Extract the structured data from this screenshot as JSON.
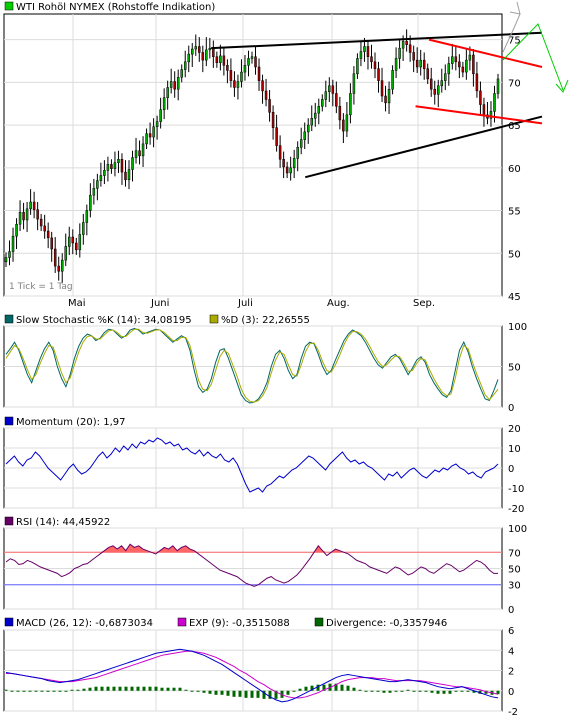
{
  "colors": {
    "frame": "#000000",
    "grid": "#dcdcdc",
    "candle_up": "#00aa00",
    "candle_down": "#aa0000",
    "trend_black": "#000000",
    "trend_red": "#ff0000",
    "arrow_up": "#a0a0a0",
    "arrow_down": "#00cc00",
    "stoch_k": "#006666",
    "stoch_d": "#aaaa00",
    "momentum": "#0000cc",
    "rsi": "#660066",
    "rsi_fill": "#ff6666",
    "rsi_upper": "#ff6666",
    "rsi_lower": "#6666ff",
    "macd": "#0000cc",
    "exp": "#cc00cc",
    "divergence": "#006600"
  },
  "chart_data": [
    {
      "type": "candlestick",
      "title": "WTI Rohöl NYMEX (Rohstoffe Indikation)",
      "legend_color": "#00cc00",
      "note": "1 Tick = 1 Tag",
      "x_labels": [
        "Mai",
        "Juni",
        "Juli",
        "Aug.",
        "Sep."
      ],
      "y_ticks": [
        45,
        50,
        55,
        60,
        65,
        70,
        75
      ],
      "ylim": [
        45,
        78
      ],
      "trend_lines": [
        {
          "color": "black",
          "points": [
            [
              0.385,
              74.0
            ],
            [
              1.0,
              75.8
            ]
          ]
        },
        {
          "color": "black",
          "points": [
            [
              0.56,
              58.9
            ],
            [
              1.0,
              66.0
            ]
          ]
        },
        {
          "color": "red",
          "points": [
            [
              0.79,
              75.0
            ],
            [
              1.0,
              71.8
            ]
          ]
        },
        {
          "color": "red",
          "points": [
            [
              0.765,
              67.2
            ],
            [
              1.0,
              65.2
            ]
          ]
        }
      ],
      "forecast_arrows": [
        {
          "direction": "up",
          "color": "grey"
        },
        {
          "direction": "up-down",
          "color": "green"
        }
      ],
      "close": [
        49.5,
        50.2,
        52.0,
        53.4,
        54.8,
        53.9,
        55.2,
        56.0,
        55.1,
        54.0,
        53.2,
        52.6,
        51.8,
        50.5,
        48.5,
        47.9,
        49.2,
        50.8,
        51.9,
        51.2,
        50.4,
        52.2,
        53.6,
        55.0,
        56.8,
        57.6,
        58.5,
        59.1,
        59.7,
        60.4,
        59.9,
        60.6,
        61.0,
        59.5,
        58.6,
        59.8,
        61.2,
        62.0,
        61.4,
        62.8,
        64.0,
        63.6,
        64.8,
        65.4,
        66.8,
        68.2,
        69.4,
        70.1,
        69.2,
        70.6,
        71.5,
        72.4,
        73.3,
        73.9,
        74.2,
        73.5,
        72.6,
        73.8,
        74.0,
        73.0,
        72.3,
        73.1,
        72.0,
        71.4,
        70.2,
        69.4,
        70.1,
        71.2,
        72.0,
        72.8,
        73.0,
        71.8,
        70.2,
        69.0,
        68.0,
        66.5,
        64.7,
        62.6,
        61.0,
        60.1,
        59.4,
        60.0,
        61.1,
        62.4,
        63.3,
        64.2,
        65.0,
        65.8,
        66.4,
        67.2,
        68.0,
        68.9,
        69.6,
        68.7,
        67.2,
        65.6,
        64.3,
        66.2,
        68.7,
        71.0,
        72.8,
        73.6,
        74.2,
        73.0,
        72.4,
        71.6,
        70.2,
        68.4,
        67.6,
        69.2,
        71.4,
        72.8,
        74.0,
        74.8,
        74.4,
        73.5,
        72.6,
        71.8,
        72.6,
        71.6,
        70.4,
        69.2,
        68.6,
        69.6,
        70.2,
        71.0,
        72.2,
        73.0,
        72.4,
        71.8,
        71.2,
        72.6,
        73.2,
        71.0,
        69.0,
        67.4,
        66.2,
        65.8,
        66.6,
        68.7,
        70.4
      ]
    },
    {
      "type": "line",
      "title": "Slow Stochastic %K (14): 34,08195",
      "legend_color": "#006666",
      "y_ticks": [
        0,
        50,
        100
      ],
      "ylim": [
        0,
        100
      ],
      "series": [
        {
          "name": "Slow Stochastic %K (14): 34,08195",
          "values": [
            65,
            72,
            80,
            70,
            55,
            40,
            30,
            45,
            60,
            72,
            80,
            70,
            50,
            35,
            25,
            40,
            60,
            75,
            85,
            90,
            88,
            82,
            85,
            92,
            96,
            95,
            90,
            85,
            88,
            95,
            97,
            95,
            90,
            92,
            94,
            96,
            95,
            90,
            85,
            80,
            84,
            88,
            85,
            70,
            45,
            25,
            18,
            22,
            35,
            55,
            70,
            72,
            60,
            45,
            30,
            15,
            8,
            5,
            6,
            10,
            18,
            30,
            50,
            65,
            70,
            60,
            45,
            35,
            40,
            60,
            75,
            80,
            78,
            65,
            50,
            40,
            45,
            58,
            70,
            82,
            90,
            95,
            92,
            88,
            80,
            70,
            60,
            52,
            48,
            55,
            62,
            65,
            60,
            50,
            40,
            48,
            58,
            62,
            55,
            40,
            30,
            22,
            15,
            12,
            20,
            45,
            70,
            80,
            68,
            50,
            35,
            22,
            10,
            8,
            20,
            34
          ]
        },
        {
          "name": "%D (3): 22,26555",
          "values": [
            60,
            68,
            76,
            72,
            60,
            46,
            34,
            40,
            54,
            66,
            76,
            74,
            58,
            42,
            30,
            36,
            52,
            68,
            80,
            87,
            88,
            84,
            84,
            89,
            94,
            95,
            92,
            87,
            87,
            92,
            96,
            96,
            92,
            91,
            93,
            95,
            95,
            92,
            87,
            82,
            82,
            86,
            86,
            76,
            55,
            33,
            22,
            20,
            28,
            45,
            62,
            70,
            66,
            52,
            38,
            22,
            12,
            7,
            6,
            8,
            14,
            24,
            42,
            58,
            68,
            65,
            52,
            40,
            38,
            52,
            68,
            78,
            79,
            70,
            56,
            45,
            43,
            52,
            64,
            77,
            87,
            93,
            93,
            90,
            84,
            75,
            65,
            56,
            50,
            52,
            58,
            63,
            62,
            54,
            44,
            45,
            54,
            60,
            58,
            46,
            35,
            26,
            18,
            14,
            16,
            35,
            60,
            76,
            72,
            56,
            41,
            28,
            15,
            9,
            15,
            22
          ]
        }
      ]
    },
    {
      "type": "line",
      "title": "Momentum (20): 1,97",
      "legend_color": "#0000cc",
      "y_ticks": [
        -20,
        -10,
        0,
        10,
        20
      ],
      "ylim": [
        -20,
        20
      ],
      "series": [
        {
          "name": "Momentum (20): 1,97",
          "values": [
            2,
            4,
            6,
            3,
            1,
            4,
            5,
            8,
            6,
            3,
            0,
            -2,
            -4,
            -6,
            -3,
            0,
            2,
            -1,
            -3,
            -2,
            0,
            3,
            6,
            8,
            5,
            7,
            10,
            8,
            11,
            9,
            12,
            10,
            13,
            12,
            14,
            13,
            15,
            14,
            12,
            13,
            11,
            12,
            9,
            10,
            8,
            7,
            9,
            6,
            8,
            6,
            5,
            7,
            4,
            3,
            5,
            2,
            -3,
            -8,
            -12,
            -11,
            -10,
            -12,
            -9,
            -8,
            -6,
            -4,
            -5,
            -3,
            -1,
            0,
            2,
            4,
            6,
            5,
            3,
            1,
            -1,
            2,
            4,
            6,
            8,
            5,
            3,
            4,
            2,
            3,
            1,
            0,
            -2,
            -4,
            -6,
            -3,
            -4,
            -2,
            -5,
            -3,
            -1,
            0,
            -2,
            -4,
            -5,
            -3,
            -1,
            -2,
            0,
            -1,
            1,
            2,
            0,
            -1,
            -3,
            -2,
            -4,
            -5,
            -2,
            -1,
            0,
            2
          ]
        }
      ]
    },
    {
      "type": "line",
      "title": "RSI (14): 44,45922",
      "legend_color": "#660066",
      "y_ticks": [
        0,
        30,
        50,
        70,
        100
      ],
      "ylim": [
        0,
        100
      ],
      "reference_lines": [
        70,
        30
      ],
      "series": [
        {
          "name": "RSI (14): 44,45922",
          "values": [
            58,
            62,
            60,
            55,
            56,
            60,
            58,
            55,
            52,
            50,
            48,
            46,
            44,
            40,
            42,
            45,
            50,
            52,
            55,
            56,
            60,
            64,
            68,
            72,
            76,
            78,
            74,
            78,
            72,
            80,
            76,
            78,
            74,
            72,
            70,
            68,
            72,
            76,
            74,
            78,
            72,
            76,
            78,
            74,
            72,
            68,
            64,
            60,
            56,
            52,
            48,
            46,
            44,
            42,
            40,
            36,
            32,
            30,
            28,
            30,
            34,
            38,
            40,
            36,
            34,
            32,
            34,
            38,
            42,
            48,
            55,
            62,
            70,
            78,
            72,
            66,
            70,
            74,
            72,
            70,
            68,
            64,
            60,
            58,
            56,
            52,
            50,
            48,
            46,
            44,
            48,
            52,
            50,
            46,
            42,
            44,
            48,
            52,
            50,
            46,
            44,
            48,
            52,
            56,
            54,
            50,
            46,
            48,
            52,
            56,
            60,
            58,
            54,
            48,
            44,
            44
          ]
        }
      ]
    },
    {
      "type": "line",
      "title": "MACD (26, 12): -0,6873034",
      "legend_color": "#0000cc",
      "y_ticks": [
        -2,
        0,
        2,
        4,
        6
      ],
      "ylim": [
        -2,
        6
      ],
      "series": [
        {
          "name": "MACD (26, 12): -0,6873034",
          "values": [
            1.8,
            1.7,
            1.6,
            1.5,
            1.4,
            1.3,
            1.2,
            1.0,
            0.9,
            0.8,
            0.9,
            1.0,
            1.1,
            1.3,
            1.5,
            1.7,
            1.9,
            2.1,
            2.3,
            2.5,
            2.7,
            2.9,
            3.1,
            3.3,
            3.5,
            3.7,
            3.8,
            3.9,
            4.0,
            4.1,
            4.0,
            3.9,
            3.7,
            3.5,
            3.2,
            2.9,
            2.6,
            2.2,
            1.8,
            1.4,
            1.0,
            0.6,
            0.2,
            -0.2,
            -0.6,
            -0.9,
            -1.1,
            -1.0,
            -0.8,
            -0.5,
            -0.2,
            0.1,
            0.4,
            0.7,
            1.0,
            1.3,
            1.5,
            1.6,
            1.5,
            1.4,
            1.3,
            1.2,
            1.1,
            1.0,
            0.9,
            0.9,
            1.0,
            1.1,
            1.0,
            0.9,
            0.8,
            0.6,
            0.4,
            0.3,
            0.2,
            0.3,
            0.4,
            0.2,
            0.0,
            -0.2,
            -0.4,
            -0.6,
            -0.7
          ]
        },
        {
          "name": "EXP (9): -0,3515088",
          "values": [
            1.7,
            1.7,
            1.6,
            1.5,
            1.4,
            1.3,
            1.2,
            1.1,
            1.0,
            0.9,
            0.9,
            0.9,
            1.0,
            1.1,
            1.2,
            1.3,
            1.5,
            1.7,
            1.9,
            2.1,
            2.3,
            2.5,
            2.7,
            2.9,
            3.1,
            3.3,
            3.5,
            3.6,
            3.7,
            3.8,
            3.9,
            3.9,
            3.8,
            3.7,
            3.5,
            3.3,
            3.0,
            2.7,
            2.4,
            2.0,
            1.7,
            1.3,
            0.9,
            0.6,
            0.2,
            -0.1,
            -0.4,
            -0.6,
            -0.7,
            -0.7,
            -0.6,
            -0.4,
            -0.2,
            0.1,
            0.3,
            0.6,
            0.9,
            1.1,
            1.2,
            1.3,
            1.3,
            1.3,
            1.2,
            1.2,
            1.1,
            1.0,
            1.0,
            1.0,
            1.0,
            1.0,
            0.9,
            0.8,
            0.7,
            0.6,
            0.5,
            0.4,
            0.4,
            0.3,
            0.2,
            0.1,
            -0.1,
            -0.2,
            -0.35
          ]
        },
        {
          "name": "Divergence: -0,3357946",
          "values": [
            0.1,
            0.0,
            0.0,
            0.0,
            0.0,
            0.0,
            0.0,
            -0.1,
            -0.1,
            -0.1,
            0.0,
            0.1,
            0.1,
            0.2,
            0.3,
            0.4,
            0.4,
            0.4,
            0.4,
            0.4,
            0.4,
            0.4,
            0.4,
            0.4,
            0.4,
            0.4,
            0.3,
            0.3,
            0.3,
            0.3,
            0.1,
            0.0,
            -0.1,
            -0.2,
            -0.3,
            -0.4,
            -0.4,
            -0.5,
            -0.6,
            -0.6,
            -0.7,
            -0.7,
            -0.7,
            -0.8,
            -0.8,
            -0.8,
            -0.7,
            -0.4,
            -0.1,
            0.2,
            0.4,
            0.5,
            0.6,
            0.6,
            0.7,
            0.7,
            0.6,
            0.5,
            0.3,
            0.1,
            0.0,
            -0.1,
            -0.1,
            -0.2,
            -0.2,
            -0.1,
            0.0,
            0.1,
            0.0,
            -0.1,
            -0.1,
            -0.2,
            -0.3,
            -0.3,
            -0.3,
            -0.1,
            0.0,
            -0.1,
            -0.2,
            -0.3,
            -0.3,
            -0.4,
            -0.34
          ]
        }
      ]
    }
  ]
}
